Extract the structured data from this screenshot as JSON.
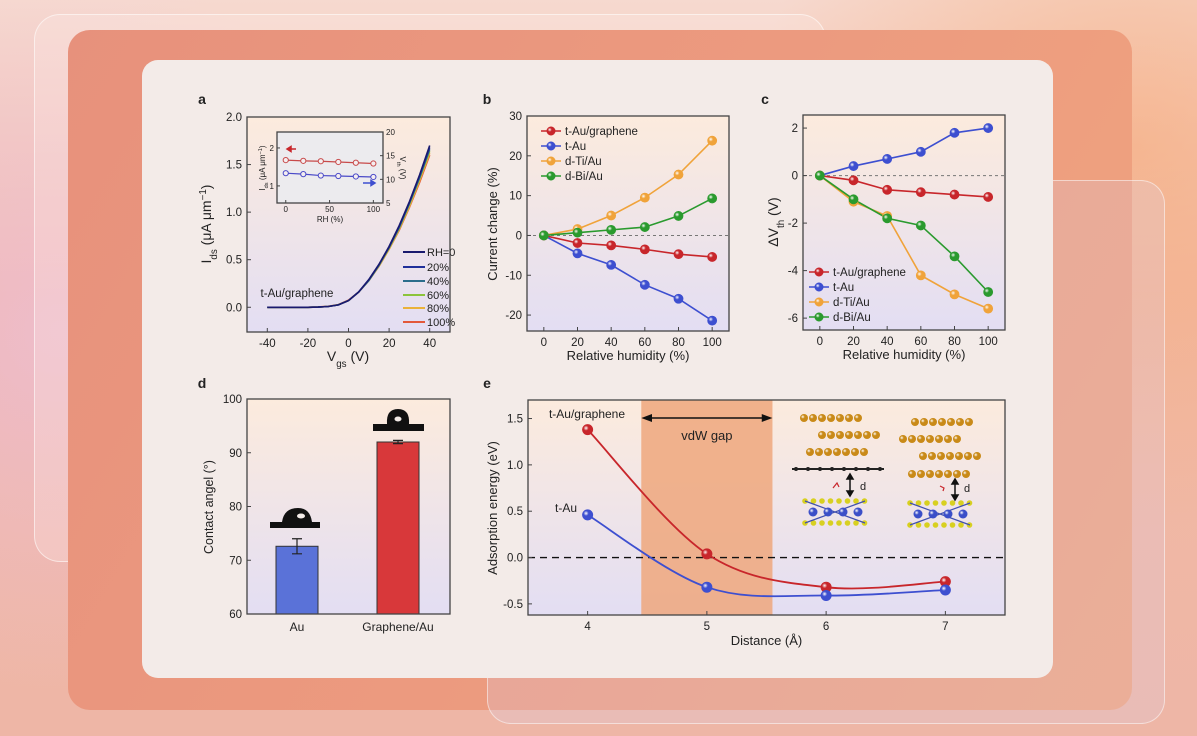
{
  "colors": {
    "red": "#c8262b",
    "blue": "#3d4fd0",
    "orange": "#f0a33a",
    "green": "#2a9a2e",
    "bar_au": "#5a72d8",
    "bar_gr": "#d8383a"
  },
  "chart_data": [
    {
      "panel_label": "a",
      "type": "line",
      "ylabel": [
        {
          "t": "I"
        },
        {
          "t": "ds",
          "s": "sub"
        },
        {
          "t": " (μA μm"
        },
        {
          "t": "−1",
          "s": "sup"
        },
        {
          "t": ")"
        }
      ],
      "xlabel": [
        {
          "t": "V"
        },
        {
          "t": "gs",
          "s": "sub"
        },
        {
          "t": " (V)"
        }
      ],
      "xlim": [
        -50,
        50
      ],
      "ylim": [
        -0.26,
        2.0
      ],
      "xticks": [
        -40,
        -20,
        0,
        20,
        40
      ],
      "xtick_labels": [
        "-40",
        "-20",
        "0",
        "20",
        "40"
      ],
      "yticks": [
        0,
        0.5,
        1,
        1.5,
        2
      ],
      "ytick_labels": [
        "0.0",
        "0.5",
        "1.0",
        "1.5",
        "2.0"
      ],
      "annotation": "t-Au/graphene",
      "legend_position": "bottom-right",
      "x": [
        -40,
        -35,
        -30,
        -25,
        -20,
        -15,
        -10,
        -5,
        0,
        5,
        10,
        15,
        20,
        25,
        30,
        35,
        40
      ],
      "series": [
        {
          "name": "RH=0",
          "color": "#1a1a6e",
          "values": [
            0,
            0,
            0,
            0,
            0,
            0.002,
            0.008,
            0.025,
            0.07,
            0.16,
            0.29,
            0.45,
            0.64,
            0.86,
            1.11,
            1.39,
            1.7
          ]
        },
        {
          "name": "20%",
          "color": "#1f2f9a",
          "values": [
            0,
            0,
            0,
            0,
            0,
            0.002,
            0.008,
            0.025,
            0.07,
            0.16,
            0.29,
            0.45,
            0.63,
            0.85,
            1.1,
            1.38,
            1.68
          ]
        },
        {
          "name": "40%",
          "color": "#2b6d8c",
          "values": [
            0,
            0,
            0,
            0,
            0,
            0.002,
            0.008,
            0.025,
            0.07,
            0.16,
            0.28,
            0.44,
            0.63,
            0.84,
            1.09,
            1.36,
            1.66
          ]
        },
        {
          "name": "60%",
          "color": "#8cc43c",
          "values": [
            0,
            0,
            0,
            0,
            0,
            0.002,
            0.008,
            0.026,
            0.07,
            0.16,
            0.28,
            0.44,
            0.62,
            0.83,
            1.08,
            1.35,
            1.64
          ]
        },
        {
          "name": "80%",
          "color": "#eab23a",
          "values": [
            0,
            0,
            0,
            0,
            0,
            0.002,
            0.009,
            0.027,
            0.07,
            0.16,
            0.28,
            0.43,
            0.61,
            0.82,
            1.06,
            1.33,
            1.62
          ]
        },
        {
          "name": "100%",
          "color": "#e3583a",
          "values": [
            0,
            0,
            0,
            0,
            0,
            0.003,
            0.01,
            0.028,
            0.075,
            0.16,
            0.28,
            0.43,
            0.61,
            0.81,
            1.05,
            1.31,
            1.6
          ]
        }
      ],
      "inset": {
        "type": "line",
        "xlabel": "RH (%)",
        "ylabel_left": [
          {
            "t": "I"
          },
          {
            "t": "ds",
            "s": "sub"
          },
          {
            "t": " (μA μm"
          },
          {
            "t": "−1",
            "s": "sup"
          },
          {
            "t": ")"
          }
        ],
        "ylabel_right": [
          {
            "t": "V"
          },
          {
            "t": "th",
            "s": "sub"
          },
          {
            "t": " (V)"
          }
        ],
        "xlim": [
          -10,
          111
        ],
        "ylim_left": [
          0.55,
          2.42
        ],
        "ylim_right": [
          5,
          20
        ],
        "xticks": [
          0,
          50,
          100
        ],
        "xtick_labels": [
          "0",
          "50",
          "100"
        ],
        "yticks_left": [
          1,
          2
        ],
        "ytick_labels_left": [
          "1",
          "2"
        ],
        "yticks_right": [
          5,
          10,
          15,
          20
        ],
        "ytick_labels_right": [
          "5",
          "10",
          "15",
          "20"
        ],
        "x": [
          0,
          20,
          40,
          60,
          80,
          100
        ],
        "series": [
          {
            "name": "Ids",
            "axis": "left",
            "color": "#c84a4a",
            "values": [
              1.68,
              1.66,
              1.65,
              1.63,
              1.61,
              1.59
            ]
          },
          {
            "name": "Vth",
            "axis": "right",
            "color": "#4a4ac8",
            "values": [
              11.3,
              11.1,
              10.8,
              10.7,
              10.6,
              10.5
            ]
          }
        ]
      }
    },
    {
      "panel_label": "b",
      "type": "line",
      "xlabel": "Relative humidity (%)",
      "ylabel": "Current change (%)",
      "xlim": [
        -10,
        110
      ],
      "ylim": [
        -24,
        30
      ],
      "xticks": [
        0,
        20,
        40,
        60,
        80,
        100
      ],
      "xtick_labels": [
        "0",
        "20",
        "40",
        "60",
        "80",
        "100"
      ],
      "yticks": [
        -20,
        -10,
        0,
        10,
        20,
        30
      ],
      "ytick_labels": [
        "-20",
        "-10",
        "0",
        "10",
        "20",
        "30"
      ],
      "legend_position": "top-left",
      "x": [
        0,
        20,
        40,
        60,
        80,
        100
      ],
      "series": [
        {
          "name": "t-Au/graphene",
          "color": "#c8262b",
          "values": [
            0,
            -1.9,
            -2.5,
            -3.5,
            -4.7,
            -5.4
          ]
        },
        {
          "name": "t-Au",
          "color": "#3d4fd0",
          "values": [
            0,
            -4.5,
            -7.4,
            -12.4,
            -15.9,
            -21.4
          ]
        },
        {
          "name": "d-Ti/Au",
          "color": "#f0a33a",
          "values": [
            0,
            1.6,
            5.0,
            9.5,
            15.3,
            23.8
          ]
        },
        {
          "name": "d-Bi/Au",
          "color": "#2a9a2e",
          "values": [
            0,
            0.7,
            1.4,
            2.1,
            4.9,
            9.3
          ]
        }
      ]
    },
    {
      "panel_label": "c",
      "type": "line",
      "xlabel": "Relative humidity (%)",
      "ylabel": [
        {
          "t": "ΔV"
        },
        {
          "t": "th",
          "s": "sub"
        },
        {
          "t": " (V)"
        }
      ],
      "xlim": [
        -10,
        110
      ],
      "ylim": [
        -6.5,
        2.55
      ],
      "xticks": [
        0,
        20,
        40,
        60,
        80,
        100
      ],
      "xtick_labels": [
        "0",
        "20",
        "40",
        "60",
        "80",
        "100"
      ],
      "yticks": [
        -6,
        -4,
        -2,
        0,
        2
      ],
      "ytick_labels": [
        "-6",
        "-4",
        "-2",
        "0",
        "2"
      ],
      "legend_position": "bottom-left",
      "x": [
        0,
        20,
        40,
        60,
        80,
        100
      ],
      "series": [
        {
          "name": "t-Au/graphene",
          "color": "#c8262b",
          "values": [
            0,
            -0.2,
            -0.6,
            -0.7,
            -0.8,
            -0.9
          ]
        },
        {
          "name": "t-Au",
          "color": "#3d4fd0",
          "values": [
            0,
            0.4,
            0.7,
            1.0,
            1.8,
            2.0
          ]
        },
        {
          "name": "d-Ti/Au",
          "color": "#f0a33a",
          "values": [
            0,
            -1.1,
            -1.7,
            -4.2,
            -5.0,
            -5.6
          ]
        },
        {
          "name": "d-Bi/Au",
          "color": "#2a9a2e",
          "values": [
            0,
            -1.0,
            -1.8,
            -2.1,
            -3.4,
            -4.9
          ]
        }
      ]
    },
    {
      "panel_label": "d",
      "type": "bar",
      "ylabel": "Contact angel (°)",
      "ylim": [
        60,
        100
      ],
      "yticks": [
        60,
        70,
        80,
        90,
        100
      ],
      "ytick_labels": [
        "60",
        "70",
        "80",
        "90",
        "100"
      ],
      "categories": [
        "Au",
        "Graphene/Au"
      ],
      "values": [
        72.6,
        92.0
      ],
      "errors": [
        1.4,
        0.3
      ],
      "colors": [
        "#5a72d8",
        "#d8383a"
      ]
    },
    {
      "panel_label": "e",
      "type": "line",
      "xlabel": "Distance (Å)",
      "ylabel": "Adsorption energy (eV)",
      "xlim": [
        3.5,
        7.5
      ],
      "ylim": [
        -0.62,
        1.7
      ],
      "xticks": [
        4,
        5,
        6,
        7
      ],
      "xtick_labels": [
        "4",
        "5",
        "6",
        "7"
      ],
      "yticks": [
        -0.5,
        0,
        0.5,
        1,
        1.5
      ],
      "ytick_labels": [
        "-0.5",
        "0.0",
        "0.5",
        "1.0",
        "1.5"
      ],
      "shaded_region": {
        "label": "vdW gap",
        "x": [
          4.45,
          5.55
        ]
      },
      "schematic_label": "d",
      "x": [
        4,
        5,
        6,
        7
      ],
      "series": [
        {
          "name": "t-Au/graphene",
          "color": "#c8262b",
          "values": [
            1.38,
            0.04,
            -0.32,
            -0.26
          ]
        },
        {
          "name": "t-Au",
          "color": "#3d4fd0",
          "values": [
            0.46,
            -0.32,
            -0.41,
            -0.35
          ]
        }
      ]
    }
  ]
}
